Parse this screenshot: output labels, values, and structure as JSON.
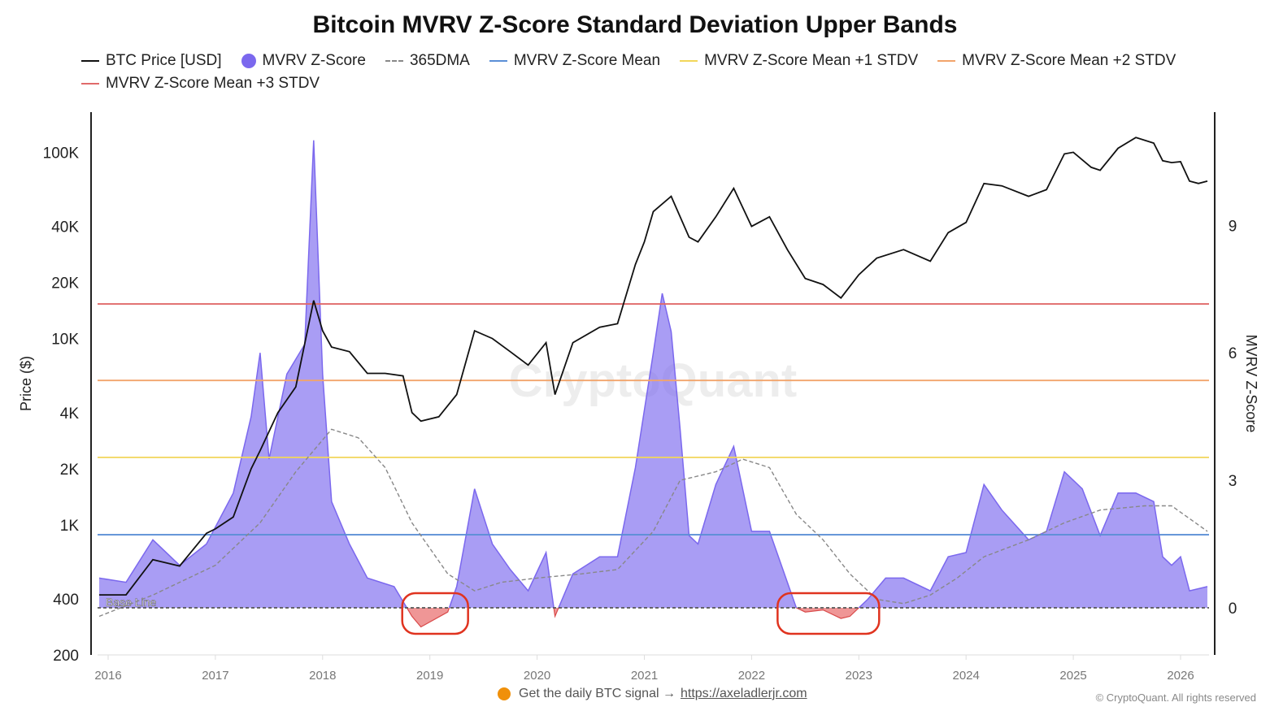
{
  "colors": {
    "price": "#111111",
    "zscore": "#7b68ee",
    "dma": "#888888",
    "mean": "#5b8fd6",
    "stdv1": "#f2d65a",
    "stdv2": "#f2a46b",
    "stdv3": "#e06a6a",
    "negative": "#e86a6a",
    "highlight": "#e0331f"
  },
  "watermark": "CryptoQuant",
  "footer": {
    "signal_text": "Get the daily BTC signal →",
    "link": "https://axeladlerjr.com",
    "copyright": "© CryptoQuant. All rights reserved"
  },
  "chart_data": {
    "type": "line",
    "title": "Bitcoin MVRV Z-Score Standard Deviation Upper Bands",
    "legend": [
      "BTC Price [USD]",
      "MVRV Z-Score",
      "365DMA",
      "MVRV Z-Score Mean",
      "MVRV Z-Score Mean +1 STDV",
      "MVRV Z-Score Mean +2 STDV",
      "MVRV Z-Score Mean +3 STDV"
    ],
    "legend_position": "top",
    "ylabel_left": "Price ($)",
    "ylabel_right": "MVRV Z-Score",
    "left_axis": {
      "scale": "log",
      "ticks": [
        "100K",
        "40K",
        "20K",
        "10K",
        "4K",
        "2K",
        "1K",
        "400",
        "200"
      ],
      "tick_values": [
        100000,
        40000,
        20000,
        10000,
        4000,
        2000,
        1000,
        400,
        200
      ],
      "range": [
        200,
        150000
      ]
    },
    "right_axis": {
      "scale": "linear",
      "ticks": [
        "9",
        "6",
        "3",
        "0"
      ],
      "tick_values": [
        9,
        6,
        3,
        0
      ],
      "range": [
        -1.1,
        12.4
      ]
    },
    "x_ticks": [
      "2016",
      "2017",
      "2018",
      "2019",
      "2020",
      "2021",
      "2022",
      "2023",
      "2024",
      "2025",
      "2026"
    ],
    "x_range": [
      "2015-11",
      "2026-04"
    ],
    "baseline_label": "Base Line",
    "baseline": 0,
    "bands": {
      "mean": 1.72,
      "stdv1": 3.54,
      "stdv2": 5.35,
      "stdv3": 7.15
    },
    "highlights": [
      [
        "2018-11",
        "2019-04"
      ],
      [
        "2022-05",
        "2023-02"
      ]
    ],
    "price": [
      [
        "2015-12",
        420
      ],
      [
        "2016-03",
        420
      ],
      [
        "2016-06",
        650
      ],
      [
        "2016-09",
        600
      ],
      [
        "2016-12",
        900
      ],
      [
        "2017-01",
        950
      ],
      [
        "2017-03",
        1100
      ],
      [
        "2017-05",
        2000
      ],
      [
        "2017-06",
        2500
      ],
      [
        "2017-08",
        4000
      ],
      [
        "2017-10",
        5500
      ],
      [
        "2017-12",
        16000
      ],
      [
        "2018-01",
        11000
      ],
      [
        "2018-02",
        9000
      ],
      [
        "2018-04",
        8500
      ],
      [
        "2018-06",
        6500
      ],
      [
        "2018-08",
        6500
      ],
      [
        "2018-10",
        6300
      ],
      [
        "2018-11",
        4000
      ],
      [
        "2018-12",
        3600
      ],
      [
        "2019-02",
        3800
      ],
      [
        "2019-04",
        5000
      ],
      [
        "2019-06",
        11000
      ],
      [
        "2019-08",
        10000
      ],
      [
        "2019-10",
        8500
      ],
      [
        "2019-12",
        7200
      ],
      [
        "2020-02",
        9500
      ],
      [
        "2020-03",
        5000
      ],
      [
        "2020-05",
        9500
      ],
      [
        "2020-08",
        11500
      ],
      [
        "2020-10",
        12000
      ],
      [
        "2020-12",
        25000
      ],
      [
        "2021-01",
        33000
      ],
      [
        "2021-02",
        48000
      ],
      [
        "2021-04",
        58000
      ],
      [
        "2021-06",
        35000
      ],
      [
        "2021-07",
        33000
      ],
      [
        "2021-09",
        45000
      ],
      [
        "2021-11",
        64000
      ],
      [
        "2022-01",
        40000
      ],
      [
        "2022-03",
        45000
      ],
      [
        "2022-05",
        30000
      ],
      [
        "2022-07",
        21000
      ],
      [
        "2022-09",
        19500
      ],
      [
        "2022-11",
        16500
      ],
      [
        "2023-01",
        22000
      ],
      [
        "2023-03",
        27000
      ],
      [
        "2023-06",
        30000
      ],
      [
        "2023-09",
        26000
      ],
      [
        "2023-11",
        37000
      ],
      [
        "2024-01",
        42000
      ],
      [
        "2024-03",
        68000
      ],
      [
        "2024-05",
        66000
      ],
      [
        "2024-08",
        58000
      ],
      [
        "2024-10",
        63000
      ],
      [
        "2024-12",
        98000
      ],
      [
        "2025-01",
        100000
      ],
      [
        "2025-03",
        83000
      ],
      [
        "2025-04",
        80000
      ],
      [
        "2025-06",
        105000
      ],
      [
        "2025-08",
        120000
      ],
      [
        "2025-10",
        112000
      ],
      [
        "2025-11",
        90000
      ],
      [
        "2025-12",
        88000
      ],
      [
        "2026-01",
        89000
      ],
      [
        "2026-02",
        70000
      ],
      [
        "2026-03",
        68000
      ],
      [
        "2026-04",
        70000
      ]
    ],
    "zscore": [
      [
        "2015-12",
        0.7
      ],
      [
        "2016-03",
        0.6
      ],
      [
        "2016-06",
        1.6
      ],
      [
        "2016-09",
        1.0
      ],
      [
        "2016-12",
        1.5
      ],
      [
        "2017-03",
        2.7
      ],
      [
        "2017-05",
        4.5
      ],
      [
        "2017-06",
        6.0
      ],
      [
        "2017-07",
        3.5
      ],
      [
        "2017-09",
        5.5
      ],
      [
        "2017-11",
        6.2
      ],
      [
        "2017-12",
        11.0
      ],
      [
        "2018-01",
        5.5
      ],
      [
        "2018-02",
        2.5
      ],
      [
        "2018-04",
        1.5
      ],
      [
        "2018-06",
        0.7
      ],
      [
        "2018-09",
        0.5
      ],
      [
        "2018-11",
        -0.2
      ],
      [
        "2018-12",
        -0.45
      ],
      [
        "2019-03",
        -0.1
      ],
      [
        "2019-04",
        0.5
      ],
      [
        "2019-06",
        2.8
      ],
      [
        "2019-08",
        1.5
      ],
      [
        "2019-10",
        0.9
      ],
      [
        "2019-12",
        0.4
      ],
      [
        "2020-02",
        1.3
      ],
      [
        "2020-03",
        -0.2
      ],
      [
        "2020-05",
        0.8
      ],
      [
        "2020-08",
        1.2
      ],
      [
        "2020-10",
        1.2
      ],
      [
        "2020-12",
        3.3
      ],
      [
        "2021-02",
        6.0
      ],
      [
        "2021-03",
        7.4
      ],
      [
        "2021-04",
        6.5
      ],
      [
        "2021-05",
        4.2
      ],
      [
        "2021-06",
        1.7
      ],
      [
        "2021-07",
        1.5
      ],
      [
        "2021-09",
        2.9
      ],
      [
        "2021-11",
        3.8
      ],
      [
        "2022-01",
        1.8
      ],
      [
        "2022-03",
        1.8
      ],
      [
        "2022-05",
        0.6
      ],
      [
        "2022-06",
        0.0
      ],
      [
        "2022-07",
        -0.1
      ],
      [
        "2022-09",
        -0.05
      ],
      [
        "2022-11",
        -0.25
      ],
      [
        "2022-12",
        -0.2
      ],
      [
        "2023-02",
        0.2
      ],
      [
        "2023-04",
        0.7
      ],
      [
        "2023-06",
        0.7
      ],
      [
        "2023-09",
        0.4
      ],
      [
        "2023-11",
        1.2
      ],
      [
        "2024-01",
        1.3
      ],
      [
        "2024-03",
        2.9
      ],
      [
        "2024-05",
        2.3
      ],
      [
        "2024-08",
        1.6
      ],
      [
        "2024-10",
        1.8
      ],
      [
        "2024-12",
        3.2
      ],
      [
        "2025-02",
        2.8
      ],
      [
        "2025-04",
        1.7
      ],
      [
        "2025-06",
        2.7
      ],
      [
        "2025-08",
        2.7
      ],
      [
        "2025-10",
        2.5
      ],
      [
        "2025-11",
        1.2
      ],
      [
        "2025-12",
        1.0
      ],
      [
        "2026-01",
        1.2
      ],
      [
        "2026-02",
        0.4
      ],
      [
        "2026-04",
        0.5
      ]
    ],
    "dma365": [
      [
        "2015-12",
        -0.2
      ],
      [
        "2016-06",
        0.3
      ],
      [
        "2017-01",
        1.0
      ],
      [
        "2017-06",
        2.0
      ],
      [
        "2017-10",
        3.2
      ],
      [
        "2018-02",
        4.2
      ],
      [
        "2018-05",
        4.0
      ],
      [
        "2018-08",
        3.3
      ],
      [
        "2018-11",
        2.0
      ],
      [
        "2019-03",
        0.8
      ],
      [
        "2019-06",
        0.4
      ],
      [
        "2019-09",
        0.6
      ],
      [
        "2020-01",
        0.7
      ],
      [
        "2020-06",
        0.8
      ],
      [
        "2020-10",
        0.9
      ],
      [
        "2021-02",
        1.8
      ],
      [
        "2021-05",
        3.0
      ],
      [
        "2021-09",
        3.2
      ],
      [
        "2021-12",
        3.5
      ],
      [
        "2022-03",
        3.3
      ],
      [
        "2022-06",
        2.2
      ],
      [
        "2022-09",
        1.6
      ],
      [
        "2022-12",
        0.8
      ],
      [
        "2023-03",
        0.2
      ],
      [
        "2023-06",
        0.1
      ],
      [
        "2023-09",
        0.3
      ],
      [
        "2023-12",
        0.7
      ],
      [
        "2024-03",
        1.2
      ],
      [
        "2024-08",
        1.6
      ],
      [
        "2024-12",
        2.0
      ],
      [
        "2025-04",
        2.3
      ],
      [
        "2025-09",
        2.4
      ],
      [
        "2025-12",
        2.4
      ],
      [
        "2026-04",
        1.8
      ]
    ]
  }
}
